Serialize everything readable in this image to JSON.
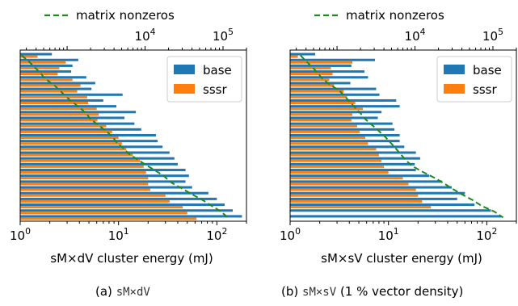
{
  "chart_data": [
    {
      "type": "bar",
      "orientation": "horizontal",
      "xscale": "log",
      "xlim": [
        1,
        200
      ],
      "xlabel": "sM×dV cluster energy (mJ)",
      "xticks": [
        {
          "v": 1,
          "base": "10",
          "exp": "0"
        },
        {
          "v": 10,
          "base": "10",
          "exp": "1"
        },
        {
          "v": 100,
          "base": "10",
          "exp": "2"
        }
      ],
      "secondary_xaxis": {
        "position": "top",
        "scale": "log",
        "ticks": [
          {
            "v": 10000,
            "base": "10",
            "exp": "4"
          },
          {
            "v": 100000,
            "base": "10",
            "exp": "5"
          }
        ]
      },
      "legend_top": "matrix nonzeros",
      "legend": [
        {
          "name": "base",
          "color": "#1f77b4"
        },
        {
          "name": "sssr",
          "color": "#ff7f0e"
        }
      ],
      "legend_position": "upper-right",
      "series": [
        {
          "name": "base",
          "color": "#1f77b4",
          "values": [
            2.1,
            3.9,
            3.4,
            3.3,
            4.7,
            5.8,
            5.3,
            11.0,
            7.0,
            9.5,
            15.0,
            11.5,
            14.5,
            17.0,
            24.0,
            25.0,
            28.0,
            33.0,
            37.0,
            40.0,
            48.0,
            52.0,
            48.0,
            56.0,
            82.0,
            100.0,
            120.0,
            145.0,
            180.0
          ]
        },
        {
          "name": "sssr",
          "color": "#ff7f0e",
          "values": [
            1.5,
            2.9,
            2.5,
            2.4,
            3.4,
            4.1,
            3.8,
            4.8,
            4.9,
            6.0,
            6.3,
            6.1,
            7.5,
            8.6,
            10.0,
            10.8,
            12.0,
            14.0,
            16.5,
            18.0,
            19.0,
            20.0,
            20.0,
            21.0,
            30.0,
            33.0,
            45.0,
            50.0,
            62.0
          ]
        },
        {
          "name": "matrix nonzeros",
          "color": "#1a8a1a",
          "dash": true,
          "axis": "top",
          "values": [
            260,
            320,
            380,
            450,
            520,
            660,
            800,
            950,
            1150,
            1450,
            1750,
            2000,
            2500,
            3100,
            3800,
            4300,
            5200,
            6200,
            8000,
            10500,
            14000,
            18000,
            22000,
            30000,
            40000,
            55000,
            72000,
            95000,
            115000
          ]
        }
      ],
      "caption": {
        "label": "(a)",
        "code": "sM×dV",
        "rest": ""
      }
    },
    {
      "type": "bar",
      "orientation": "horizontal",
      "xscale": "log",
      "xlim": [
        1,
        200
      ],
      "xlabel": "sM×sV cluster energy (mJ)",
      "xticks": [
        {
          "v": 1,
          "base": "10",
          "exp": "0"
        },
        {
          "v": 10,
          "base": "10",
          "exp": "1"
        },
        {
          "v": 100,
          "base": "10",
          "exp": "2"
        }
      ],
      "secondary_xaxis": {
        "position": "top",
        "scale": "log",
        "ticks": [
          {
            "v": 10000,
            "base": "10",
            "exp": "4"
          },
          {
            "v": 100000,
            "base": "10",
            "exp": "5"
          }
        ]
      },
      "legend_top": "matrix nonzeros",
      "legend": [
        {
          "name": "base",
          "color": "#1f77b4"
        },
        {
          "name": "sssr",
          "color": "#ff7f0e"
        }
      ],
      "legend_position": "upper-right",
      "series": [
        {
          "name": "base",
          "color": "#1f77b4",
          "values": [
            1.8,
            7.3,
            4.2,
            5.7,
            6.2,
            4.1,
            7.5,
            8.1,
            12.0,
            13.0,
            8.5,
            7.8,
            11.0,
            11.5,
            13.0,
            13.0,
            14.5,
            19.0,
            21.0,
            18.5,
            19.0,
            26.0,
            35.0,
            44.0,
            60.0,
            50.0,
            75.0,
            110.0,
            140.0
          ]
        },
        {
          "name": "sssr",
          "color": "#ff7f0e",
          "values": [
            1.2,
            4.3,
            2.6,
            2.7,
            2.5,
            2.8,
            3.5,
            3.8,
            4.6,
            5.5,
            4.3,
            4.2,
            4.8,
            5.1,
            5.8,
            6.2,
            7.5,
            8.0,
            8.5,
            9.0,
            10.0,
            14.0,
            16.0,
            19.0,
            20.0,
            22.0,
            27.0,
            0,
            0
          ]
        },
        {
          "name": "matrix nonzeros",
          "color": "#1a8a1a",
          "dash": true,
          "axis": "top",
          "values": [
            340,
            400,
            480,
            560,
            650,
            800,
            1050,
            1250,
            1450,
            1700,
            2000,
            2300,
            2800,
            3400,
            4100,
            4800,
            5600,
            6500,
            7500,
            9000,
            12000,
            17000,
            23000,
            30000,
            40000,
            55000,
            72000,
            105000,
            135000
          ]
        }
      ],
      "caption": {
        "label": "(b)",
        "code": "sM×sV",
        "rest": "vector density)",
        "pct": "(1 %"
      }
    }
  ]
}
